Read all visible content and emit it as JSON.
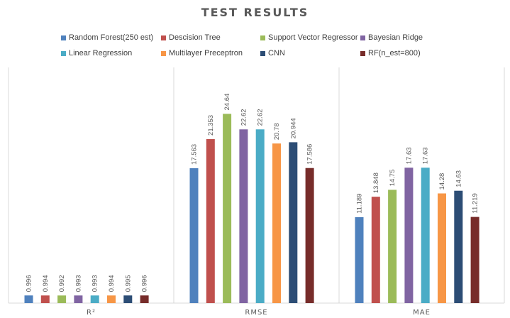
{
  "chart_data": {
    "type": "bar",
    "title": "TEST RESULTS",
    "categories": [
      "R²",
      "RMSE",
      "MAE"
    ],
    "series": [
      {
        "name": "Random Forest(250 est)",
        "color": "#4f81bd",
        "values": [
          0.996,
          17.563,
          11.189
        ],
        "labels": [
          "0.996",
          "17.563",
          "11.189"
        ]
      },
      {
        "name": "Descision Tree",
        "color": "#c0504d",
        "values": [
          0.994,
          21.353,
          13.848
        ],
        "labels": [
          "0.994",
          "21.353",
          "13.848"
        ]
      },
      {
        "name": "Support Vector Regressor",
        "color": "#9bbb59",
        "values": [
          0.992,
          24.64,
          14.75
        ],
        "labels": [
          "0.992",
          "24.64",
          "14.75"
        ]
      },
      {
        "name": "Bayesian Ridge",
        "color": "#8064a2",
        "values": [
          0.993,
          22.62,
          17.63
        ],
        "labels": [
          "0.993",
          "22.62",
          "17.63"
        ]
      },
      {
        "name": "Linear Regression",
        "color": "#4bacc6",
        "values": [
          0.993,
          22.62,
          17.63
        ],
        "labels": [
          "0.993",
          "22.62",
          "17.63"
        ]
      },
      {
        "name": "Multilayer Preceptron",
        "color": "#f79646",
        "values": [
          0.994,
          20.78,
          14.28
        ],
        "labels": [
          "0.994",
          "20.78",
          "14.28"
        ]
      },
      {
        "name": "CNN",
        "color": "#2c4d75",
        "values": [
          0.995,
          20.944,
          14.63
        ],
        "labels": [
          "0.995",
          "20.944",
          "14.63"
        ]
      },
      {
        "name": "RF(n_est=800)",
        "color": "#772c2a",
        "values": [
          0.996,
          17.586,
          11.219
        ],
        "labels": [
          "0.996",
          "17.586",
          "11.219"
        ]
      }
    ],
    "ylim": [
      0,
      30
    ],
    "legend_position": "top",
    "grid": false
  }
}
